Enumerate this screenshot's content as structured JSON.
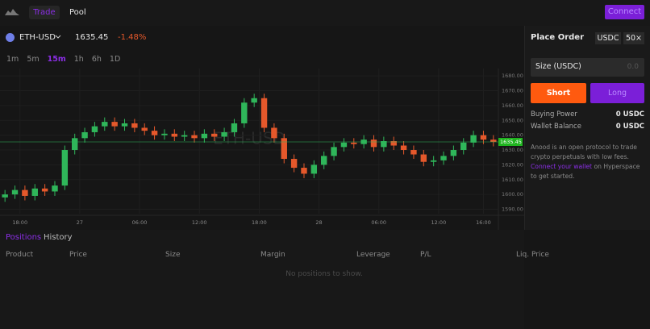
{
  "nav": {
    "tabs": [
      "Trade",
      "Pool"
    ],
    "connect": "Connect"
  },
  "ticker": {
    "symbol": "ETH-USD",
    "price": "1635.45",
    "change": "-1.48%"
  },
  "intervals": [
    "1m",
    "5m",
    "15m",
    "1h",
    "6h",
    "1D"
  ],
  "chart_data": {
    "type": "candlestick",
    "watermark": "ETH-USD",
    "xlim": [
      0,
      50
    ],
    "xticks": [
      {
        "value": 2,
        "label": "18:00"
      },
      {
        "value": 8,
        "label": "27"
      },
      {
        "value": 14,
        "label": "06:00"
      },
      {
        "value": 20,
        "label": "12:00"
      },
      {
        "value": 26,
        "label": "18:00"
      },
      {
        "value": 32,
        "label": "28"
      },
      {
        "value": 38,
        "label": "06:00"
      },
      {
        "value": 44,
        "label": "12:00"
      },
      {
        "value": 48.5,
        "label": "16:00"
      }
    ],
    "ylim": [
      1587,
      1685
    ],
    "yticks": [
      {
        "value": 1590,
        "label": "1590.00"
      },
      {
        "value": 1600,
        "label": "1600.00"
      },
      {
        "value": 1610,
        "label": "1610.00"
      },
      {
        "value": 1620,
        "label": "1620.00"
      },
      {
        "value": 1630,
        "label": "1630.00"
      },
      {
        "value": 1640,
        "label": "1640.00"
      },
      {
        "value": 1650,
        "label": "1650.00"
      },
      {
        "value": 1660,
        "label": "1660.00"
      },
      {
        "value": 1670,
        "label": "1670.00"
      },
      {
        "value": 1680,
        "label": "1680.00"
      }
    ],
    "up_color": "#2fb65a",
    "down_color": "#e5582b",
    "open": [
      1598,
      1600,
      1603,
      1599,
      1604,
      1602,
      1606,
      1630,
      1638,
      1642,
      1646,
      1649,
      1646,
      1648,
      1645,
      1643,
      1640,
      1641,
      1639,
      1640,
      1638,
      1641,
      1639,
      1642,
      1648,
      1662,
      1665,
      1645,
      1638,
      1624,
      1618,
      1614,
      1620,
      1626,
      1632,
      1635,
      1634,
      1637,
      1632,
      1636,
      1633,
      1630,
      1627,
      1622,
      1623,
      1626,
      1630,
      1635,
      1640,
      1637
    ],
    "high": [
      1603,
      1606,
      1606,
      1607,
      1607,
      1609,
      1633,
      1641,
      1645,
      1649,
      1652,
      1652,
      1651,
      1651,
      1648,
      1646,
      1644,
      1644,
      1643,
      1643,
      1644,
      1644,
      1645,
      1651,
      1665,
      1668,
      1668,
      1648,
      1641,
      1627,
      1621,
      1623,
      1629,
      1635,
      1638,
      1638,
      1640,
      1640,
      1639,
      1639,
      1636,
      1633,
      1630,
      1626,
      1629,
      1633,
      1638,
      1643,
      1643,
      1640
    ],
    "low": [
      1595,
      1597,
      1596,
      1596,
      1599,
      1599,
      1603,
      1627,
      1635,
      1639,
      1643,
      1643,
      1643,
      1642,
      1640,
      1637,
      1637,
      1636,
      1636,
      1635,
      1635,
      1636,
      1636,
      1639,
      1645,
      1659,
      1642,
      1635,
      1621,
      1615,
      1611,
      1611,
      1617,
      1623,
      1629,
      1631,
      1631,
      1629,
      1629,
      1630,
      1627,
      1624,
      1619,
      1619,
      1620,
      1623,
      1627,
      1632,
      1634,
      1632.45
    ],
    "close": [
      1600,
      1603,
      1599,
      1604,
      1602,
      1606,
      1630,
      1638,
      1642,
      1646,
      1649,
      1646,
      1648,
      1645,
      1643,
      1640,
      1641,
      1639,
      1640,
      1638,
      1641,
      1639,
      1642,
      1648,
      1662,
      1665,
      1645,
      1638,
      1624,
      1618,
      1614,
      1620,
      1626,
      1632,
      1635,
      1634,
      1637,
      1632,
      1636,
      1633,
      1630,
      1627,
      1622,
      1623,
      1626,
      1630,
      1635,
      1640,
      1637,
      1635.45
    ]
  },
  "positions": {
    "tabs": [
      "Positions",
      "History"
    ],
    "columns": [
      "Product",
      "Price",
      "Size",
      "Margin",
      "Leverage",
      "P/L",
      "Liq. Price"
    ],
    "empty": "No positions to show."
  },
  "order": {
    "title": "Place Order",
    "currency": "USDC",
    "leverage": "50×",
    "size_label": "Size (USDC)",
    "size_placeholder": "0.0",
    "short": "Short",
    "long": "Long",
    "rows": [
      [
        "Buying Power",
        "0 USDC"
      ],
      [
        "Wallet Balance",
        "0 USDC"
      ]
    ],
    "description": [
      "Anood is an open protocol to trade crypto perpetuals with low fees. ",
      "Connect your wallet",
      " on Hyperspace to get started."
    ]
  }
}
